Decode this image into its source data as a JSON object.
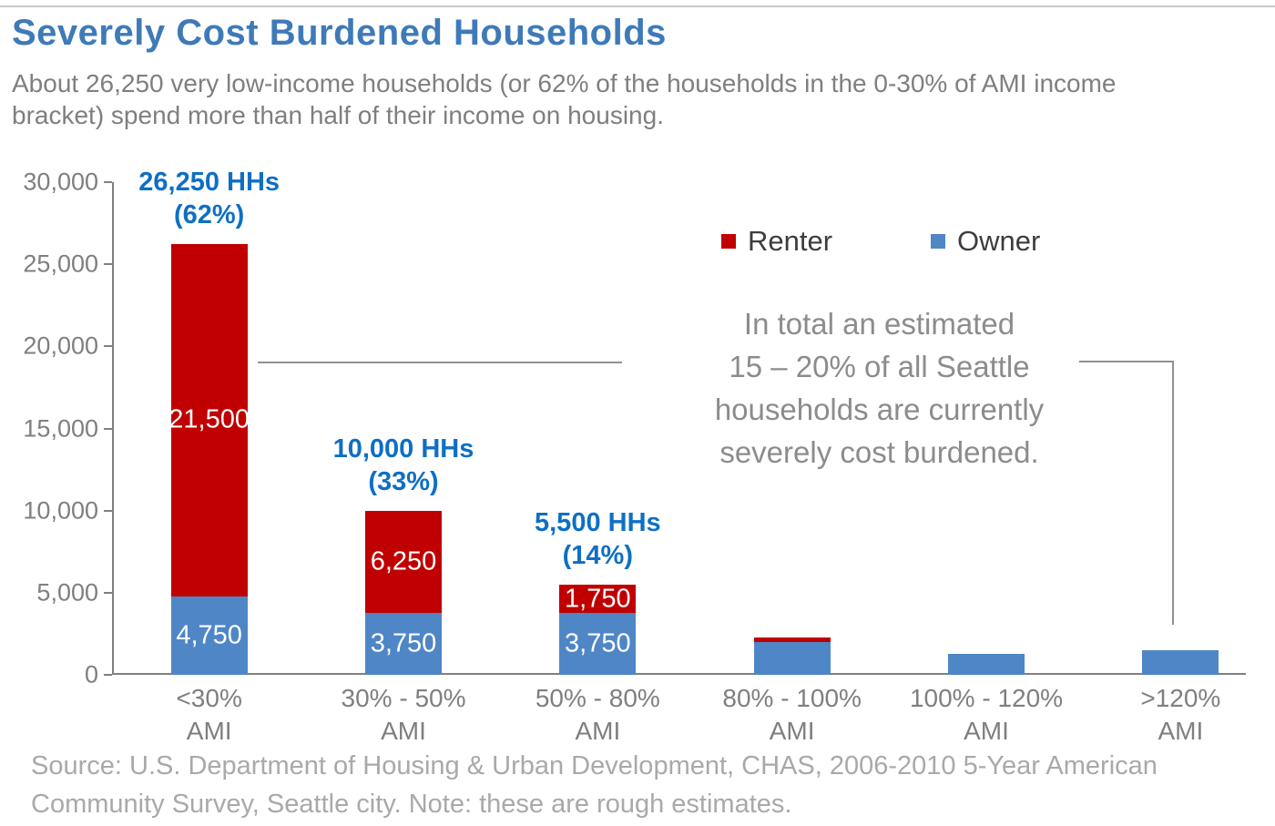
{
  "header": {
    "title": "Severely Cost Burdened Households",
    "subtitle_line1": "About 26,250 very low-income households (or 62% of the households in the 0-30% of AMI income",
    "subtitle_line2": "bracket) spend more than half of their income on housing."
  },
  "annotation": {
    "lines": [
      "In total an estimated",
      "15 – 20% of all Seattle",
      "households are currently",
      "severely cost burdened."
    ]
  },
  "footer": {
    "source_line1": "Source: U.S. Department of Housing & Urban Development, CHAS, 2006-2010 5-Year American",
    "source_line2": "Community Survey, Seattle city.  Note: these are rough estimates."
  },
  "colors": {
    "renter_red": "#c00000",
    "owner_blue": "#4f86c6",
    "title_blue": "#3f7ab8",
    "callout_label_blue": "#0e6fc4",
    "axis_gray": "#808080",
    "annotation_gray": "#8c8c8c",
    "source_gray": "#a9a9a9"
  },
  "chart_data": {
    "type": "bar",
    "stacked": true,
    "title": "Severely Cost Burdened Households",
    "xlabel": "",
    "ylabel": "",
    "ylim": [
      0,
      30000
    ],
    "grid": false,
    "legend_position": "top-right",
    "legend_order": [
      "Renter",
      "Owner"
    ],
    "yticks": [
      {
        "value": 0,
        "label": "0"
      },
      {
        "value": 5000,
        "label": "5,000"
      },
      {
        "value": 10000,
        "label": "10,000"
      },
      {
        "value": 15000,
        "label": "15,000"
      },
      {
        "value": 20000,
        "label": "20,000"
      },
      {
        "value": 25000,
        "label": "25,000"
      },
      {
        "value": 30000,
        "label": "30,000"
      }
    ],
    "categories": [
      {
        "line1": "<30%",
        "line2": "AMI"
      },
      {
        "line1": "30% - 50%",
        "line2": "AMI"
      },
      {
        "line1": "50% - 80%",
        "line2": "AMI"
      },
      {
        "line1": "80% - 100%",
        "line2": "AMI"
      },
      {
        "line1": "100% - 120%",
        "line2": "AMI"
      },
      {
        "line1": ">120%",
        "line2": "AMI"
      }
    ],
    "series": [
      {
        "name": "Owner",
        "color": "#4f86c6",
        "values": [
          4750,
          3750,
          3750,
          2000,
          1250,
          1500
        ],
        "labels": [
          "4,750",
          "3,750",
          "3,750",
          "",
          "",
          ""
        ]
      },
      {
        "name": "Renter",
        "color": "#c00000",
        "values": [
          21500,
          6250,
          1750,
          250,
          0,
          0
        ],
        "labels": [
          "21,500",
          "6,250",
          "1,750",
          "",
          "",
          ""
        ]
      }
    ],
    "totals": [
      {
        "hh": "26,250 HHs",
        "pct": "(62%)"
      },
      {
        "hh": "10,000 HHs",
        "pct": "(33%)"
      },
      {
        "hh": "5,500 HHs",
        "pct": "(14%)"
      },
      null,
      null,
      null
    ]
  }
}
